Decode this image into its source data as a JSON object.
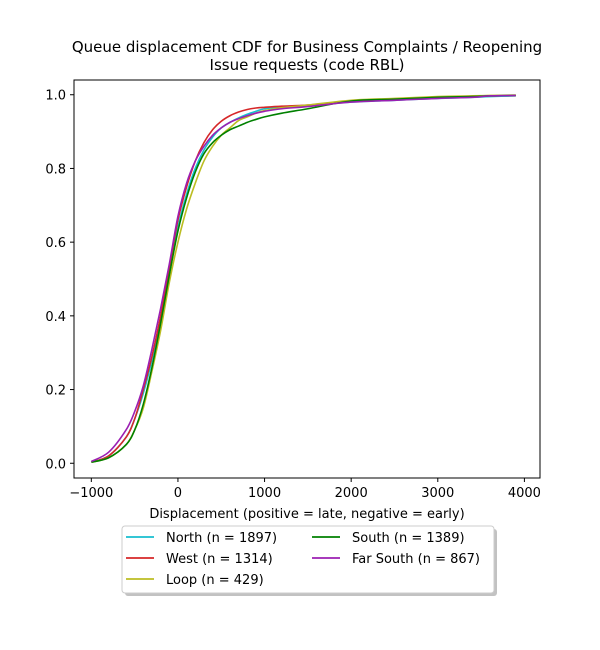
{
  "chart_data": {
    "type": "line",
    "title_lines": [
      "Queue displacement CDF for Business Complaints / Reopening",
      "Issue  requests (code RBL)"
    ],
    "xlabel": "Displacement (positive = late, negative = early)",
    "ylabel": "",
    "xlim": [
      -1200,
      4180
    ],
    "ylim": [
      -0.04,
      1.04
    ],
    "xticks": [
      -1000,
      0,
      1000,
      2000,
      3000,
      4000
    ],
    "xtick_labels": [
      "−1000",
      "0",
      "1000",
      "2000",
      "3000",
      "4000"
    ],
    "yticks": [
      0.0,
      0.2,
      0.4,
      0.6,
      0.8,
      1.0
    ],
    "ytick_labels": [
      "0.0",
      "0.2",
      "0.4",
      "0.6",
      "0.8",
      "1.0"
    ],
    "grid": false,
    "legend_placement": "below-center",
    "legend_columns": 2,
    "series": [
      {
        "name": "North (n = 1897)",
        "color": "#17becf",
        "x": [
          -1000,
          -800,
          -600,
          -500,
          -400,
          -300,
          -200,
          -100,
          0,
          100,
          200,
          300,
          400,
          500,
          600,
          700,
          800,
          900,
          1000,
          1200,
          1500,
          2000,
          2500,
          3000,
          3400,
          3600,
          3900
        ],
        "y": [
          0.003,
          0.02,
          0.07,
          0.12,
          0.19,
          0.28,
          0.39,
          0.52,
          0.64,
          0.73,
          0.8,
          0.85,
          0.885,
          0.91,
          0.925,
          0.937,
          0.947,
          0.955,
          0.962,
          0.967,
          0.97,
          0.98,
          0.985,
          0.99,
          0.993,
          0.995,
          0.997
        ]
      },
      {
        "name": "West (n = 1314)",
        "color": "#d62728",
        "x": [
          -1000,
          -800,
          -600,
          -500,
          -400,
          -300,
          -200,
          -100,
          0,
          100,
          200,
          300,
          400,
          500,
          600,
          700,
          800,
          900,
          1000,
          1200,
          1500,
          2000,
          2500,
          3000,
          3400,
          3600,
          3900
        ],
        "y": [
          0.003,
          0.02,
          0.07,
          0.12,
          0.2,
          0.29,
          0.4,
          0.53,
          0.66,
          0.75,
          0.82,
          0.87,
          0.905,
          0.928,
          0.943,
          0.953,
          0.96,
          0.964,
          0.966,
          0.969,
          0.972,
          0.983,
          0.987,
          0.992,
          0.995,
          0.997,
          0.998
        ]
      },
      {
        "name": "Loop (n = 429)",
        "color": "#bcbd22",
        "x": [
          -1000,
          -800,
          -600,
          -500,
          -400,
          -300,
          -200,
          -100,
          0,
          100,
          200,
          300,
          400,
          500,
          600,
          700,
          800,
          900,
          1000,
          1200,
          1500,
          2000,
          2500,
          3000,
          3400,
          3600,
          3900
        ],
        "y": [
          0.003,
          0.015,
          0.05,
          0.09,
          0.15,
          0.25,
          0.36,
          0.49,
          0.6,
          0.69,
          0.76,
          0.82,
          0.86,
          0.89,
          0.91,
          0.93,
          0.94,
          0.95,
          0.957,
          0.965,
          0.972,
          0.985,
          0.99,
          0.995,
          0.997,
          0.998,
          0.999
        ]
      },
      {
        "name": "South (n = 1389)",
        "color": "#008000",
        "x": [
          -1000,
          -800,
          -600,
          -500,
          -400,
          -300,
          -200,
          -100,
          0,
          100,
          200,
          300,
          400,
          500,
          600,
          700,
          800,
          900,
          1000,
          1200,
          1500,
          2000,
          2500,
          3000,
          3400,
          3600,
          3900
        ],
        "y": [
          0.003,
          0.015,
          0.05,
          0.09,
          0.16,
          0.26,
          0.38,
          0.51,
          0.63,
          0.72,
          0.79,
          0.84,
          0.87,
          0.89,
          0.905,
          0.915,
          0.925,
          0.933,
          0.94,
          0.95,
          0.962,
          0.983,
          0.988,
          0.993,
          0.995,
          0.997,
          0.998
        ]
      },
      {
        "name": "Far South (n = 867)",
        "color": "#9b1fb2",
        "x": [
          -1000,
          -800,
          -600,
          -500,
          -400,
          -300,
          -200,
          -100,
          0,
          100,
          200,
          300,
          400,
          500,
          600,
          700,
          800,
          900,
          1000,
          1200,
          1500,
          2000,
          2500,
          3000,
          3400,
          3600,
          3900
        ],
        "y": [
          0.005,
          0.03,
          0.09,
          0.14,
          0.21,
          0.31,
          0.42,
          0.54,
          0.67,
          0.76,
          0.82,
          0.86,
          0.89,
          0.91,
          0.925,
          0.935,
          0.943,
          0.95,
          0.955,
          0.962,
          0.968,
          0.98,
          0.985,
          0.99,
          0.993,
          0.997,
          0.998
        ]
      }
    ]
  }
}
